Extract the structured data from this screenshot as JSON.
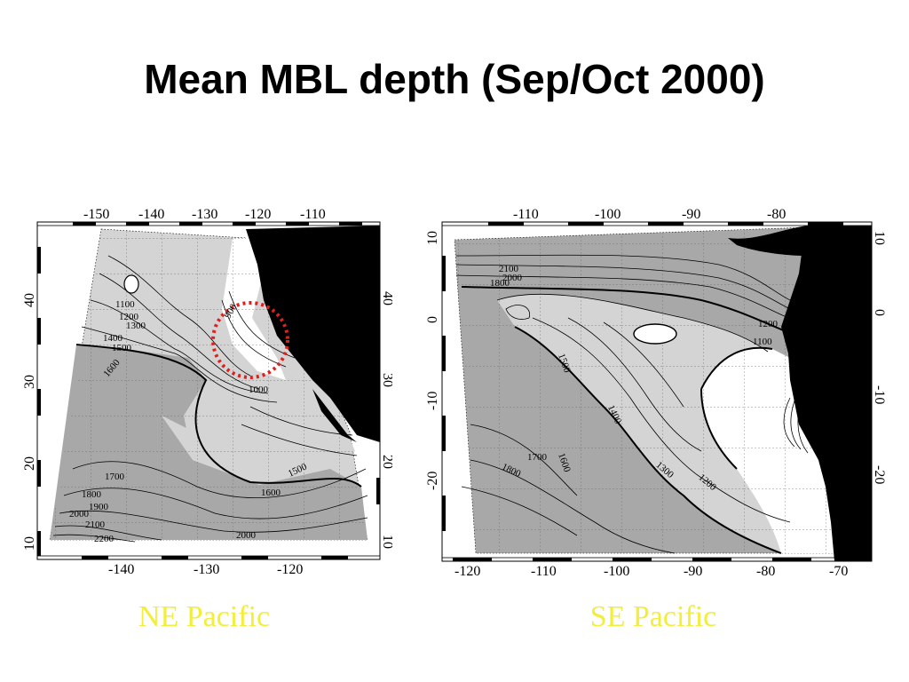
{
  "title": "Mean MBL depth (Sep/Oct 2000)",
  "colors": {
    "land": "#000000",
    "ocean_light": "#d4d4d4",
    "ocean_dark": "#a8a8a8",
    "ocean_shallow": "#ffffff",
    "highlight_circle": "#e0201c",
    "caption": "#f2ee3a"
  },
  "left_map": {
    "caption": "NE Pacific",
    "top_lon_labels": [
      "-150",
      "-140",
      "-130",
      "-120",
      "-110"
    ],
    "bottom_lon_labels": [
      "-140",
      "-130",
      "-120"
    ],
    "left_lat_labels": [
      "40",
      "30",
      "20",
      "10"
    ],
    "right_lat_labels": [
      "40",
      "30",
      "20",
      "10"
    ],
    "contour_labels": [
      "1100",
      "1200",
      "1300",
      "1400",
      "1500",
      "1600",
      "900",
      "1000",
      "1700",
      "1800",
      "1900",
      "2000",
      "2100",
      "2200",
      "1500",
      "1600",
      "2000"
    ],
    "highlight": "dotted-circle-off-california"
  },
  "right_map": {
    "caption": "SE Pacific",
    "top_lon_labels": [
      "-110",
      "-100",
      "-90",
      "-80"
    ],
    "bottom_lon_labels": [
      "-120",
      "-110",
      "-100",
      "-90",
      "-80",
      "-70"
    ],
    "left_lat_labels": [
      "10",
      "0",
      "-10",
      "-20"
    ],
    "right_lat_labels": [
      "10",
      "0",
      "-10",
      "-20"
    ],
    "contour_labels": [
      "2100",
      "2000",
      "1800",
      "1500",
      "1400",
      "1300",
      "1200",
      "1700",
      "1800",
      "1600",
      "1200",
      "1100"
    ]
  }
}
